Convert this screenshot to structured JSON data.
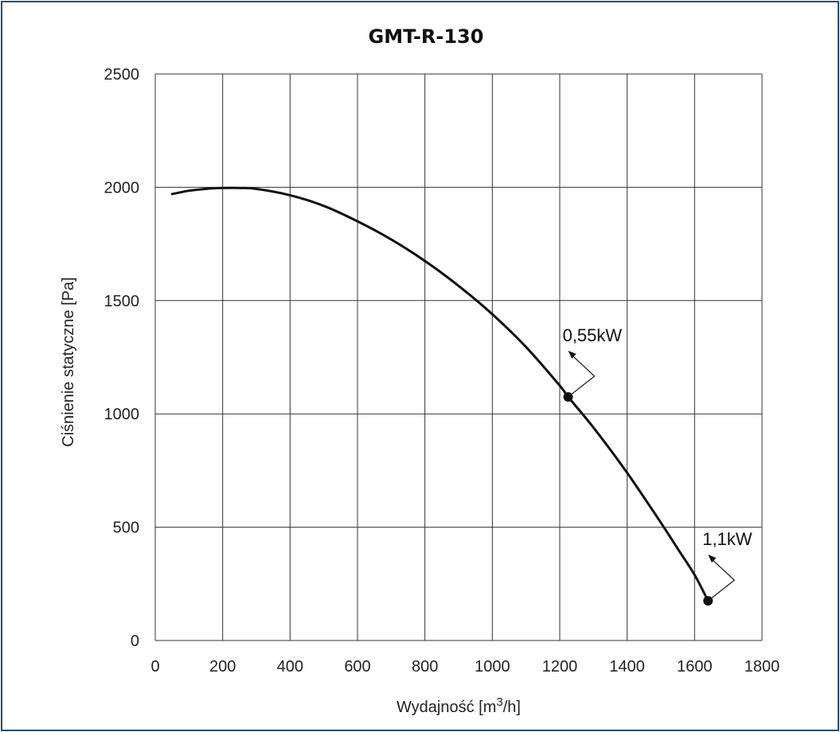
{
  "chart_data": {
    "type": "line",
    "title": "GMT-R-130",
    "xlabel_main": "Wydajność [m",
    "xlabel_sup": "3",
    "xlabel_tail": "/h]",
    "ylabel": "Ciśnienie statyczne [Pa]",
    "xlim": [
      0,
      1800
    ],
    "ylim": [
      0,
      2500
    ],
    "x_ticks": [
      0,
      200,
      400,
      600,
      800,
      1000,
      1200,
      1400,
      1600,
      1800
    ],
    "y_ticks": [
      0,
      500,
      1000,
      1500,
      2000,
      2500
    ],
    "x_tick_labels": [
      "0",
      "200",
      "400",
      "600",
      "800",
      "1000",
      "1200",
      "1400",
      "1600",
      "1800"
    ],
    "y_tick_labels": [
      "0",
      "500",
      "1000",
      "1500",
      "2000",
      "2500"
    ],
    "grid": true,
    "series": [
      {
        "x": [
          50,
          100,
          150,
          200,
          250,
          300,
          400,
          500,
          600,
          700,
          800,
          900,
          1000,
          1100,
          1200,
          1225,
          1300,
          1400,
          1500,
          1550,
          1600,
          1640
        ],
        "y": [
          1970,
          1985,
          1993,
          1997,
          1997,
          1993,
          1965,
          1918,
          1850,
          1770,
          1675,
          1565,
          1440,
          1295,
          1125,
          1075,
          940,
          740,
          520,
          405,
          290,
          175
        ]
      }
    ],
    "markers": [
      {
        "x": 1225,
        "y": 1075,
        "label": "0,55kW"
      },
      {
        "x": 1640,
        "y": 175,
        "label": "1,1kW"
      }
    ]
  }
}
